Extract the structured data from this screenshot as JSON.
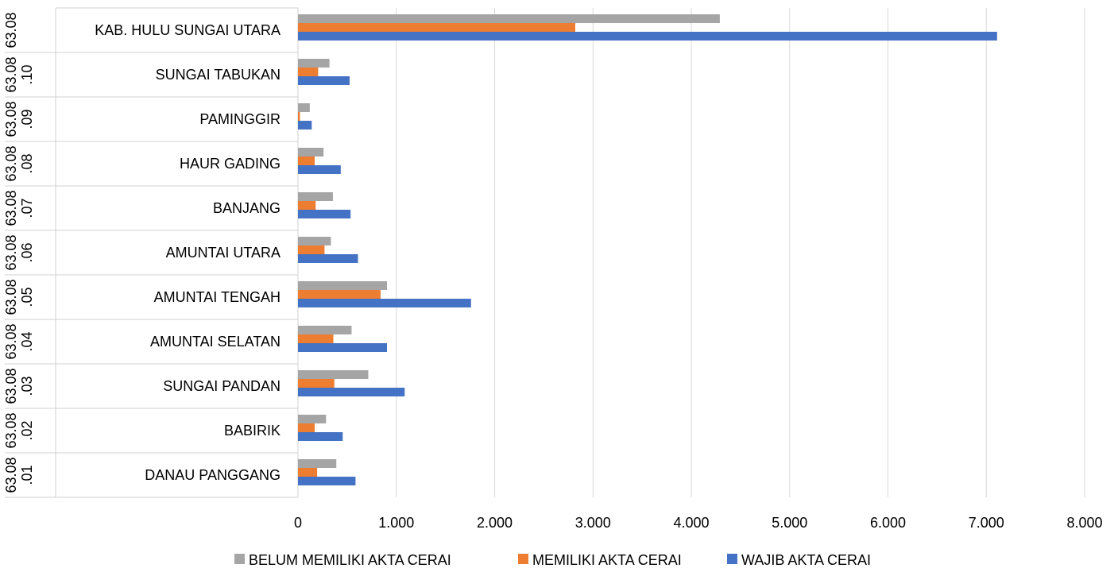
{
  "chart_data": {
    "type": "bar",
    "orientation": "horizontal",
    "title": "",
    "xlabel": "",
    "ylabel": "",
    "xlim": [
      0,
      8000
    ],
    "x_ticks": [
      "0",
      "1.000",
      "2.000",
      "3.000",
      "4.000",
      "5.000",
      "6.000",
      "7.000",
      "8.000"
    ],
    "x_tick_values": [
      0,
      1000,
      2000,
      3000,
      4000,
      5000,
      6000,
      7000,
      8000
    ],
    "grid": true,
    "legend_position": "bottom",
    "categories": [
      {
        "code_top": "63.08",
        "code_bottom": "",
        "name": "KAB. HULU SUNGAI UTARA"
      },
      {
        "code_top": "63.08",
        "code_bottom": ".10",
        "name": "SUNGAI TABUKAN"
      },
      {
        "code_top": "63.08",
        "code_bottom": ".09",
        "name": "PAMINGGIR"
      },
      {
        "code_top": "63.08",
        "code_bottom": ".08",
        "name": "HAUR GADING"
      },
      {
        "code_top": "63.08",
        "code_bottom": ".07",
        "name": "BANJANG"
      },
      {
        "code_top": "63.08",
        "code_bottom": ".06",
        "name": "AMUNTAI UTARA"
      },
      {
        "code_top": "63.08",
        "code_bottom": ".05",
        "name": "AMUNTAI TENGAH"
      },
      {
        "code_top": "63.08",
        "code_bottom": ".04",
        "name": "AMUNTAI SELATAN"
      },
      {
        "code_top": "63.08",
        "code_bottom": ".03",
        "name": "SUNGAI PANDAN"
      },
      {
        "code_top": "63.08",
        "code_bottom": ".02",
        "name": "BABIRIK"
      },
      {
        "code_top": "63.08",
        "code_bottom": ".01",
        "name": "DANAU PANGGANG"
      }
    ],
    "series": [
      {
        "name": "BELUM MEMILIKI AKTA CERAI",
        "color": "#a5a5a5",
        "values": [
          4290,
          320,
          120,
          260,
          355,
          335,
          905,
          545,
          715,
          285,
          390
        ]
      },
      {
        "name": "MEMILIKI AKTA CERAI",
        "color": "#ed7d31",
        "values": [
          2820,
          205,
          20,
          170,
          180,
          270,
          840,
          360,
          370,
          170,
          195
        ]
      },
      {
        "name": "WAJIB AKTA CERAI",
        "color": "#4472c4",
        "values": [
          7110,
          525,
          140,
          435,
          535,
          610,
          1760,
          905,
          1085,
          455,
          585
        ]
      }
    ]
  }
}
